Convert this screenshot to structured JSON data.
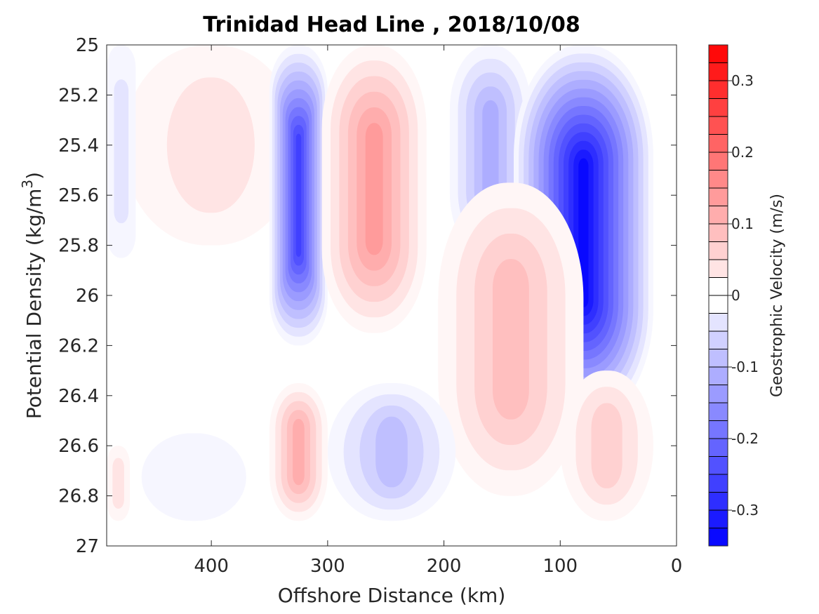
{
  "chart_data": {
    "type": "heatmap",
    "subtype": "filled-contour",
    "title": "Trinidad Head Line , 2018/10/08",
    "xlabel": "Offshore Distance (km)",
    "ylabel": "Potential Density (kg/m3)",
    "ylabel_parts": {
      "text": "Potential Density (kg/m",
      "superscript": "3",
      "suffix": ")"
    },
    "x_reversed": true,
    "y_reversed": true,
    "xlim": [
      490,
      0
    ],
    "ylim": [
      25,
      27
    ],
    "xticks": [
      {
        "value": 400,
        "label": "400"
      },
      {
        "value": 300,
        "label": "300"
      },
      {
        "value": 200,
        "label": "200"
      },
      {
        "value": 100,
        "label": "100"
      },
      {
        "value": 0,
        "label": "0"
      }
    ],
    "yticks": [
      {
        "value": 25.0,
        "label": "25"
      },
      {
        "value": 25.2,
        "label": "25.2"
      },
      {
        "value": 25.4,
        "label": "25.4"
      },
      {
        "value": 25.6,
        "label": "25.6"
      },
      {
        "value": 25.8,
        "label": "25.8"
      },
      {
        "value": 26.0,
        "label": "26"
      },
      {
        "value": 26.2,
        "label": "26.2"
      },
      {
        "value": 26.4,
        "label": "26.4"
      },
      {
        "value": 26.6,
        "label": "26.6"
      },
      {
        "value": 26.8,
        "label": "26.8"
      },
      {
        "value": 27.0,
        "label": "27"
      }
    ],
    "colorbar": {
      "label": "Geostrophic Velocity (m/s)",
      "range": [
        -0.35,
        0.35
      ],
      "level_step": 0.025,
      "ticks": [
        {
          "value": 0.3,
          "label": "0.3"
        },
        {
          "value": 0.2,
          "label": "0.2"
        },
        {
          "value": 0.1,
          "label": "0.1"
        },
        {
          "value": 0,
          "label": "0"
        },
        {
          "value": -0.1,
          "label": "-0.1"
        },
        {
          "value": -0.2,
          "label": "-0.2"
        },
        {
          "value": -0.3,
          "label": "-0.3"
        }
      ],
      "colors": {
        "negative": "#0000ff",
        "zero": "#ffffff",
        "positive": "#ff0000"
      }
    },
    "features": [
      {
        "name": "positive-band-450km",
        "x": [
          476,
          325
        ],
        "y": [
          25.0,
          25.8
        ],
        "peak_velocity": 0.05
      },
      {
        "name": "negative-band-320km",
        "x": [
          350,
          300
        ],
        "y": [
          25.0,
          26.2
        ],
        "peak_velocity": -0.27
      },
      {
        "name": "positive-band-275km",
        "x": [
          305,
          215
        ],
        "y": [
          25.0,
          26.15
        ],
        "peak_velocity": 0.15
      },
      {
        "name": "negative-band-155km",
        "x": [
          195,
          125
        ],
        "y": [
          25.0,
          25.85
        ],
        "peak_velocity": -0.12
      },
      {
        "name": "negative-band-nearshore",
        "x": [
          140,
          20
        ],
        "y": [
          25.0,
          26.5
        ],
        "peak_velocity": -0.35
      },
      {
        "name": "positive-band-120km",
        "x": [
          205,
          80
        ],
        "y": [
          25.55,
          26.8
        ],
        "peak_velocity": 0.1
      },
      {
        "name": "negative-band-250km",
        "x": [
          300,
          190
        ],
        "y": [
          26.35,
          26.9
        ],
        "peak_velocity": -0.1
      },
      {
        "name": "positive-band-320km",
        "x": [
          350,
          300
        ],
        "y": [
          26.35,
          26.9
        ],
        "peak_velocity": 0.12
      },
      {
        "name": "positive-band-nearshore-deep",
        "x": [
          100,
          20
        ],
        "y": [
          26.3,
          26.9
        ],
        "peak_velocity": 0.08
      },
      {
        "name": "negative-band-420km",
        "x": [
          460,
          370
        ],
        "y": [
          26.55,
          26.9
        ],
        "peak_velocity": -0.03
      },
      {
        "name": "positive-band-offshore-deep",
        "x": [
          490,
          470
        ],
        "y": [
          26.6,
          26.9
        ],
        "peak_velocity": 0.05
      },
      {
        "name": "negative-band-offshore",
        "x": [
          490,
          465
        ],
        "y": [
          25.0,
          25.85
        ],
        "peak_velocity": -0.06
      }
    ]
  }
}
